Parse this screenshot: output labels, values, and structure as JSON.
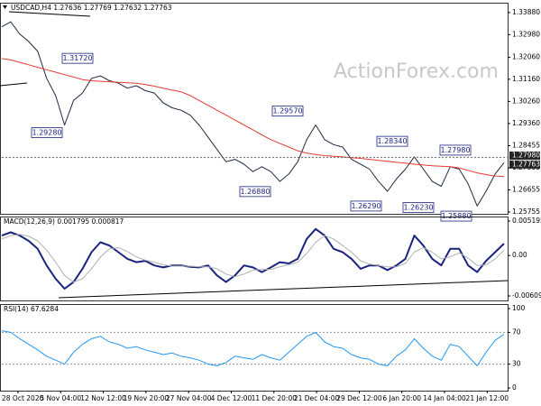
{
  "watermark": "ActionForex.com",
  "time_axis": {
    "labels": [
      "28 Oct 2020",
      "5 Nov 04:00",
      "12 Nov 12:00",
      "19 Nov 20:00",
      "27 Nov 04:00",
      "4 Dec 12:00",
      "11 Dec 20:00",
      "21 Dec 04:00",
      "29 Dec 12:00",
      "6 Jan 20:00",
      "14 Jan 04:00",
      "21 Jan 12:00"
    ]
  },
  "chart_data": [
    {
      "type": "line",
      "title": "USDCAD,H4 1.27636 1.27769 1.27632 1.27763",
      "ylim": [
        1.2568,
        1.3428
      ],
      "yticks": [
        {
          "value": 1.3388,
          "label": "1.33880"
        },
        {
          "value": 1.3298,
          "label": "1.32980"
        },
        {
          "value": 1.3206,
          "label": "1.32060"
        },
        {
          "value": 1.3116,
          "label": "1.31160"
        },
        {
          "value": 1.3026,
          "label": "1.30260"
        },
        {
          "value": 1.2936,
          "label": "1.29360"
        },
        1.28455,
        1.27555,
        1.26655,
        1.25755
      ],
      "grid": false,
      "series": [
        {
          "name": "USDCAD",
          "color": "#1f2a44",
          "width": 1,
          "values": [
            1.333,
            1.335,
            1.33,
            1.327,
            1.323,
            1.312,
            1.305,
            1.293,
            1.303,
            1.306,
            1.312,
            1.313,
            1.311,
            1.31,
            1.308,
            1.309,
            1.307,
            1.306,
            1.302,
            1.3,
            1.299,
            1.297,
            1.293,
            1.288,
            1.283,
            1.278,
            1.279,
            1.277,
            1.274,
            1.276,
            1.274,
            1.27,
            1.273,
            1.278,
            1.287,
            1.293,
            1.287,
            1.285,
            1.284,
            1.279,
            1.277,
            1.275,
            1.27,
            1.266,
            1.271,
            1.275,
            1.28,
            1.275,
            1.27,
            1.268,
            1.276,
            1.275,
            1.269,
            1.26,
            1.266,
            1.273,
            1.27763
          ]
        },
        {
          "name": "MA",
          "color": "#e53935",
          "width": 1,
          "values": [
            1.32,
            1.3195,
            1.3185,
            1.3175,
            1.3165,
            1.3155,
            1.3145,
            1.3135,
            1.3125,
            1.3115,
            1.311,
            1.3108,
            1.3106,
            1.3104,
            1.3102,
            1.31,
            1.3095,
            1.3088,
            1.308,
            1.3072,
            1.3065,
            1.305,
            1.303,
            1.301,
            1.299,
            1.297,
            1.295,
            1.293,
            1.291,
            1.289,
            1.287,
            1.2855,
            1.284,
            1.2825,
            1.2815,
            1.281,
            1.2805,
            1.2802,
            1.28,
            1.2797,
            1.2794,
            1.279,
            1.2786,
            1.2782,
            1.2778,
            1.2774,
            1.277,
            1.2767,
            1.2764,
            1.2762,
            1.276,
            1.2755,
            1.2745,
            1.2735,
            1.2728,
            1.2722,
            1.272
          ]
        }
      ],
      "annotations": [
        {
          "label": "1.31720",
          "value": 1.3172
        },
        {
          "label": "1.29280",
          "value": 1.2928
        },
        {
          "label": "1.29570",
          "value": 1.2957
        },
        {
          "label": "1.28340",
          "value": 1.2834
        },
        {
          "label": "1.27980",
          "value": 1.2798
        },
        {
          "label": "1.26880",
          "value": 1.2688
        },
        {
          "label": "1.26290",
          "value": 1.2629
        },
        {
          "label": "1.26230",
          "value": 1.2623
        },
        {
          "label": "1.25880",
          "value": 1.2588
        }
      ],
      "price_labels": [
        {
          "value": 1.2798,
          "label": "1.27980"
        },
        {
          "value": 1.27763,
          "label": "1.27763"
        }
      ]
    },
    {
      "type": "line",
      "title": "MACD(12,26,9) 0.001795 0.000817",
      "ylim": [
        -0.006093,
        0.005195
      ],
      "yticks": [
        0.005195,
        {
          "value": 0,
          "label": "0.00"
        },
        -0.006093
      ],
      "grid": false,
      "series": [
        {
          "name": "MACD",
          "color": "#1a237e",
          "width": 2,
          "values": [
            0.003,
            0.0035,
            0.003,
            0.0022,
            0.001,
            -0.0015,
            -0.0035,
            -0.005,
            -0.004,
            -0.002,
            0.0005,
            0.002,
            0.0015,
            0.0005,
            -0.0005,
            -0.001,
            -0.0008,
            -0.0015,
            -0.0018,
            -0.0015,
            -0.0015,
            -0.0017,
            -0.0018,
            -0.0015,
            -0.003,
            -0.004,
            -0.003,
            -0.0015,
            -0.0018,
            -0.0025,
            -0.0018,
            -0.001,
            -0.0012,
            -0.0005,
            0.0025,
            0.004,
            0.003,
            0.001,
            0.0005,
            -0.0005,
            -0.002,
            -0.0015,
            -0.0015,
            -0.0022,
            -0.0015,
            -0.0005,
            0.003,
            0.0015,
            -0.0005,
            -0.0015,
            0.001,
            0.001,
            -0.0015,
            -0.0025,
            -0.0008,
            0.0005,
            0.0018
          ]
        },
        {
          "name": "Signal",
          "color": "#b0b0b0",
          "width": 1,
          "values": [
            0.0025,
            0.003,
            0.0032,
            0.0029,
            0.0022,
            0.0008,
            -0.001,
            -0.003,
            -0.004,
            -0.0035,
            -0.002,
            -0.0002,
            0.001,
            0.0012,
            0.0006,
            -0.0002,
            -0.0007,
            -0.001,
            -0.0014,
            -0.0016,
            -0.0016,
            -0.0016,
            -0.0017,
            -0.0017,
            -0.002,
            -0.0028,
            -0.0032,
            -0.0028,
            -0.0022,
            -0.0021,
            -0.0021,
            -0.0017,
            -0.0014,
            -0.001,
            0.0003,
            0.002,
            0.003,
            0.0025,
            0.0015,
            0.0005,
            -0.0008,
            -0.0013,
            -0.0015,
            -0.0017,
            -0.0017,
            -0.0012,
            0.0005,
            0.0012,
            0.0005,
            -0.0005,
            -0.0002,
            0.0004,
            -0.0004,
            -0.0015,
            -0.0014,
            -0.0005,
            0.0008
          ]
        }
      ]
    },
    {
      "type": "line",
      "title": "RSI(14) 67.6284",
      "ylim": [
        0,
        100
      ],
      "yticks": [
        100,
        70,
        30,
        0
      ],
      "grid": true,
      "series": [
        {
          "name": "RSI",
          "color": "#2196f3",
          "width": 1,
          "values": [
            72,
            70,
            62,
            55,
            48,
            40,
            35,
            30,
            45,
            55,
            62,
            65,
            58,
            55,
            50,
            52,
            48,
            45,
            42,
            44,
            40,
            38,
            35,
            30,
            28,
            32,
            40,
            38,
            36,
            42,
            38,
            35,
            45,
            55,
            65,
            70,
            58,
            52,
            50,
            42,
            38,
            36,
            30,
            28,
            40,
            48,
            62,
            50,
            40,
            35,
            55,
            52,
            40,
            28,
            45,
            60,
            67.6284
          ]
        }
      ]
    }
  ]
}
